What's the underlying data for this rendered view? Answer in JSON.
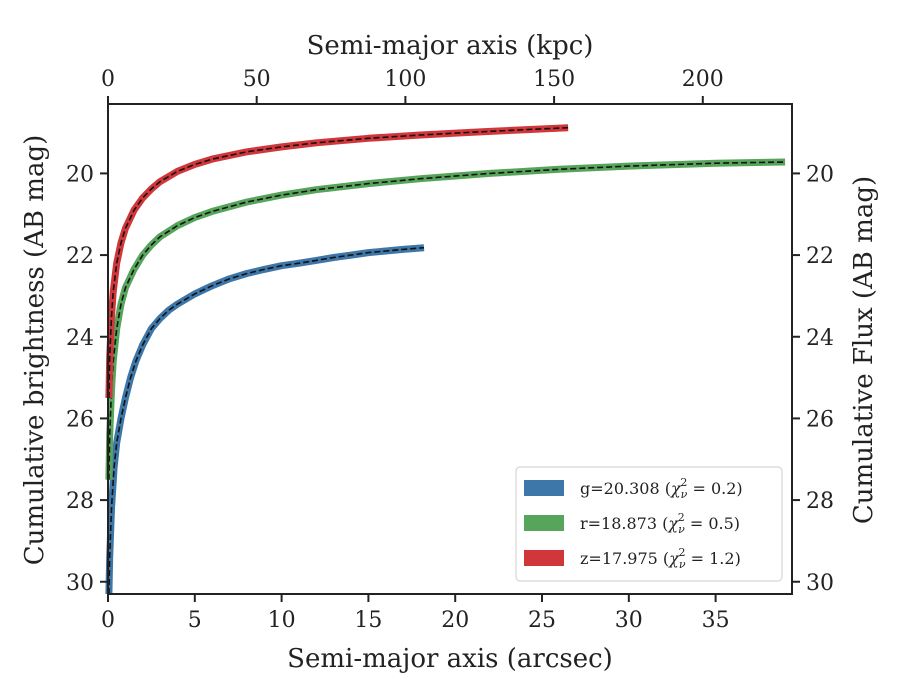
{
  "chart_data": {
    "type": "line",
    "title": "",
    "xlabel": "Semi-major axis (arcsec)",
    "top_xlabel": "Semi-major axis (kpc)",
    "ylabel": "Cumulative brightness (AB mag)",
    "right_ylabel": "Cumulative Flux (AB mag)",
    "xlim": [
      0,
      39.4
    ],
    "ylim": [
      30.3,
      18.3
    ],
    "y_inverted": true,
    "top_xlim": [
      0,
      230
    ],
    "x_ticks": [
      "0",
      "5",
      "10",
      "15",
      "20",
      "25",
      "30",
      "35"
    ],
    "top_x_ticks": [
      "0",
      "50",
      "100",
      "150",
      "200"
    ],
    "y_ticks": [
      "20",
      "22",
      "24",
      "26",
      "28",
      "30"
    ],
    "grid": false,
    "legend_position": "lower-right",
    "series": [
      {
        "name": "g=20.308",
        "chi2": "0.2",
        "color": "#3d76a8",
        "x": [
          0.05,
          0.1,
          0.2,
          0.35,
          0.5,
          0.75,
          1.0,
          1.3,
          1.6,
          2.0,
          2.5,
          3.0,
          3.5,
          4.0,
          5.0,
          6.0,
          7.0,
          8.0,
          9.0,
          10.0,
          11.0,
          12.0,
          13.0,
          14.0,
          15.0,
          16.0,
          17.0,
          18.2
        ],
        "y": [
          30.3,
          29.4,
          28.2,
          27.2,
          26.6,
          26.0,
          25.5,
          25.0,
          24.6,
          24.2,
          23.8,
          23.55,
          23.35,
          23.2,
          22.95,
          22.75,
          22.58,
          22.45,
          22.35,
          22.26,
          22.2,
          22.13,
          22.06,
          22.0,
          21.94,
          21.9,
          21.86,
          21.82
        ]
      },
      {
        "name": "r=18.873",
        "chi2": "0.5",
        "color": "#57a55a",
        "x": [
          0.05,
          0.1,
          0.2,
          0.3,
          0.5,
          0.75,
          1.0,
          1.5,
          2.0,
          2.5,
          3.0,
          4.0,
          5.0,
          6.0,
          8.0,
          10.0,
          12.0,
          15.0,
          18.0,
          22.0,
          26.0,
          30.0,
          35.0,
          39.0
        ],
        "y": [
          27.5,
          26.4,
          25.3,
          24.6,
          23.8,
          23.2,
          22.8,
          22.35,
          22.0,
          21.75,
          21.55,
          21.28,
          21.08,
          20.93,
          20.7,
          20.53,
          20.4,
          20.25,
          20.13,
          20.0,
          19.9,
          19.82,
          19.75,
          19.72
        ]
      },
      {
        "name": "z=17.975",
        "chi2": "1.2",
        "color": "#d1363a",
        "x": [
          0.05,
          0.1,
          0.2,
          0.3,
          0.5,
          0.75,
          1.0,
          1.5,
          2.0,
          2.5,
          3.0,
          4.0,
          5.0,
          6.0,
          8.0,
          10.0,
          12.0,
          15.0,
          18.0,
          21.0,
          24.0,
          26.5
        ],
        "y": [
          25.5,
          24.5,
          23.5,
          22.9,
          22.2,
          21.7,
          21.35,
          20.9,
          20.6,
          20.38,
          20.2,
          19.95,
          19.78,
          19.65,
          19.47,
          19.35,
          19.25,
          19.14,
          19.06,
          18.99,
          18.93,
          18.88
        ]
      }
    ]
  }
}
